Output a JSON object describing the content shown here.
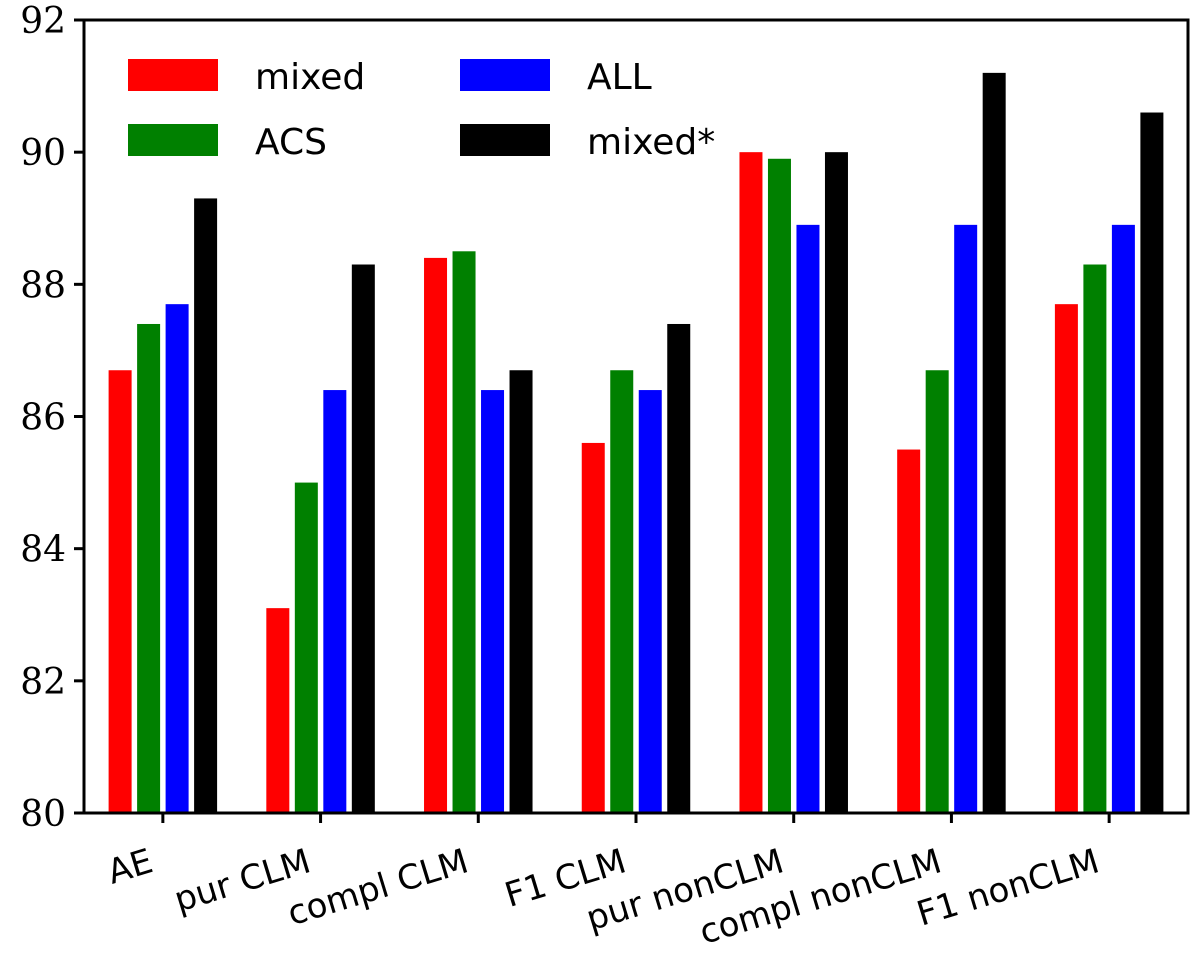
{
  "chart_data": {
    "type": "bar",
    "title": "",
    "xlabel": "",
    "ylabel": "",
    "ylim": [
      80,
      92
    ],
    "yticks": [
      "80",
      "82",
      "84",
      "86",
      "88",
      "90",
      "92"
    ],
    "grid": false,
    "legend_position": "top-left",
    "categories": [
      "AE",
      "pur CLM",
      "compl CLM",
      "F1 CLM",
      "pur nonCLM",
      "compl nonCLM",
      "F1 nonCLM"
    ],
    "series": [
      {
        "name": "mixed",
        "color": "#ff0000",
        "values": [
          86.7,
          83.1,
          88.4,
          85.6,
          90.0,
          85.5,
          87.7
        ]
      },
      {
        "name": "ACS",
        "color": "#008000",
        "values": [
          87.4,
          85.0,
          88.5,
          86.7,
          89.9,
          86.7,
          88.3
        ]
      },
      {
        "name": "ALL",
        "color": "#0000ff",
        "values": [
          87.7,
          86.4,
          86.4,
          86.4,
          88.9,
          88.9,
          88.9
        ]
      },
      {
        "name": "mixed*",
        "color": "#000000",
        "values": [
          89.3,
          88.3,
          86.7,
          87.4,
          90.0,
          91.2,
          90.6
        ]
      }
    ]
  }
}
